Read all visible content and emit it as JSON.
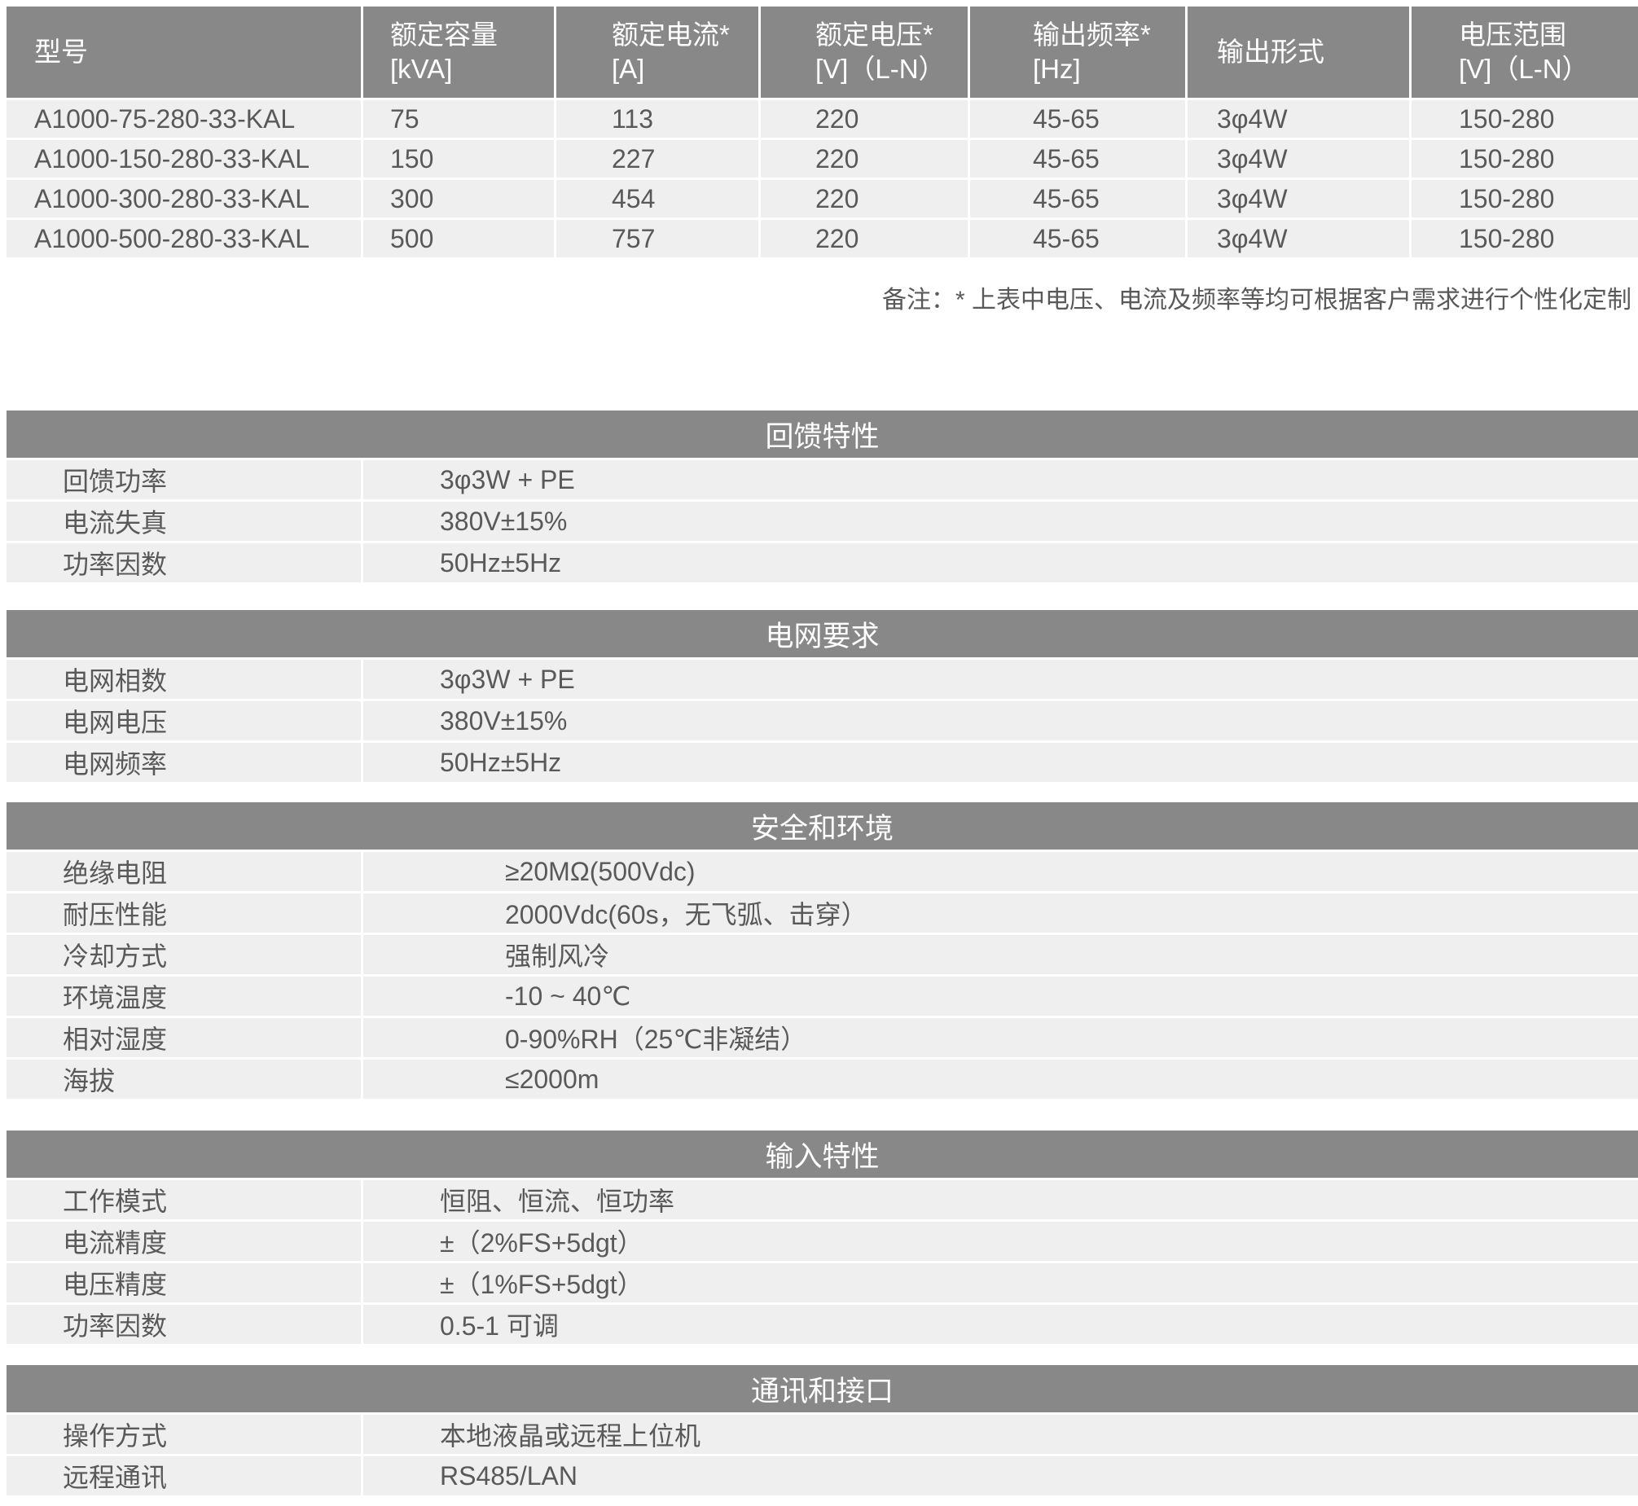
{
  "colors": {
    "header_bar": "#888888",
    "row_background": "#efefef",
    "text": "#595959",
    "header_text": "#ffffff"
  },
  "spec_table": {
    "columns": [
      {
        "label": "型号",
        "unit": ""
      },
      {
        "label": "额定容量",
        "unit": "[kVA]"
      },
      {
        "label": "额定电流*",
        "unit": "[A]"
      },
      {
        "label": "额定电压*",
        "unit": "[V]（L-N）"
      },
      {
        "label": "输出频率*",
        "unit": "[Hz]"
      },
      {
        "label": "输出形式",
        "unit": ""
      },
      {
        "label": "电压范围",
        "unit": "[V]（L-N）"
      }
    ],
    "rows": [
      [
        "A1000-75-280-33-KAL",
        "75",
        "113",
        "220",
        "45-65",
        "3φ4W",
        "150-280"
      ],
      [
        "A1000-150-280-33-KAL",
        "150",
        "227",
        "220",
        "45-65",
        "3φ4W",
        "150-280"
      ],
      [
        "A1000-300-280-33-KAL",
        "300",
        "454",
        "220",
        "45-65",
        "3φ4W",
        "150-280"
      ],
      [
        "A1000-500-280-33-KAL",
        "500",
        "757",
        "220",
        "45-65",
        "3φ4W",
        "150-280"
      ]
    ],
    "note": "备注：* 上表中电压、电流及频率等均可根据客户需求进行个性化定制"
  },
  "sections": [
    {
      "title": "回馈特性",
      "rows": [
        {
          "label": "回馈功率",
          "value": "3φ3W + PE"
        },
        {
          "label": "电流失真",
          "value": "380V±15%"
        },
        {
          "label": "功率因数",
          "value": "50Hz±5Hz"
        }
      ]
    },
    {
      "title": "电网要求",
      "rows": [
        {
          "label": "电网相数",
          "value": "3φ3W + PE"
        },
        {
          "label": "电网电压",
          "value": "380V±15%"
        },
        {
          "label": "电网频率",
          "value": "50Hz±5Hz"
        }
      ]
    },
    {
      "title": "安全和环境",
      "rows": [
        {
          "label": "绝缘电阻",
          "value": "≥20MΩ(500Vdc)"
        },
        {
          "label": "耐压性能",
          "value": "2000Vdc(60s，无飞弧、击穿）"
        },
        {
          "label": "冷却方式",
          "value": "强制风冷"
        },
        {
          "label": "环境温度",
          "value": "-10 ~ 40℃"
        },
        {
          "label": "相对湿度",
          "value": "0-90%RH（25℃非凝结）"
        },
        {
          "label": "海拔",
          "value": "≤2000m"
        }
      ]
    },
    {
      "title": "输入特性",
      "rows": [
        {
          "label": "工作模式",
          "value": "恒阻、恒流、恒功率"
        },
        {
          "label": "电流精度",
          "value": "±（2%FS+5dgt）"
        },
        {
          "label": "电压精度",
          "value": "±（1%FS+5dgt）"
        },
        {
          "label": "功率因数",
          "value": "0.5-1 可调"
        }
      ]
    },
    {
      "title": "通讯和接口",
      "rows": [
        {
          "label": "操作方式",
          "value": "本地液晶或远程上位机"
        },
        {
          "label": "远程通讯",
          "value": "RS485/LAN"
        }
      ]
    }
  ]
}
